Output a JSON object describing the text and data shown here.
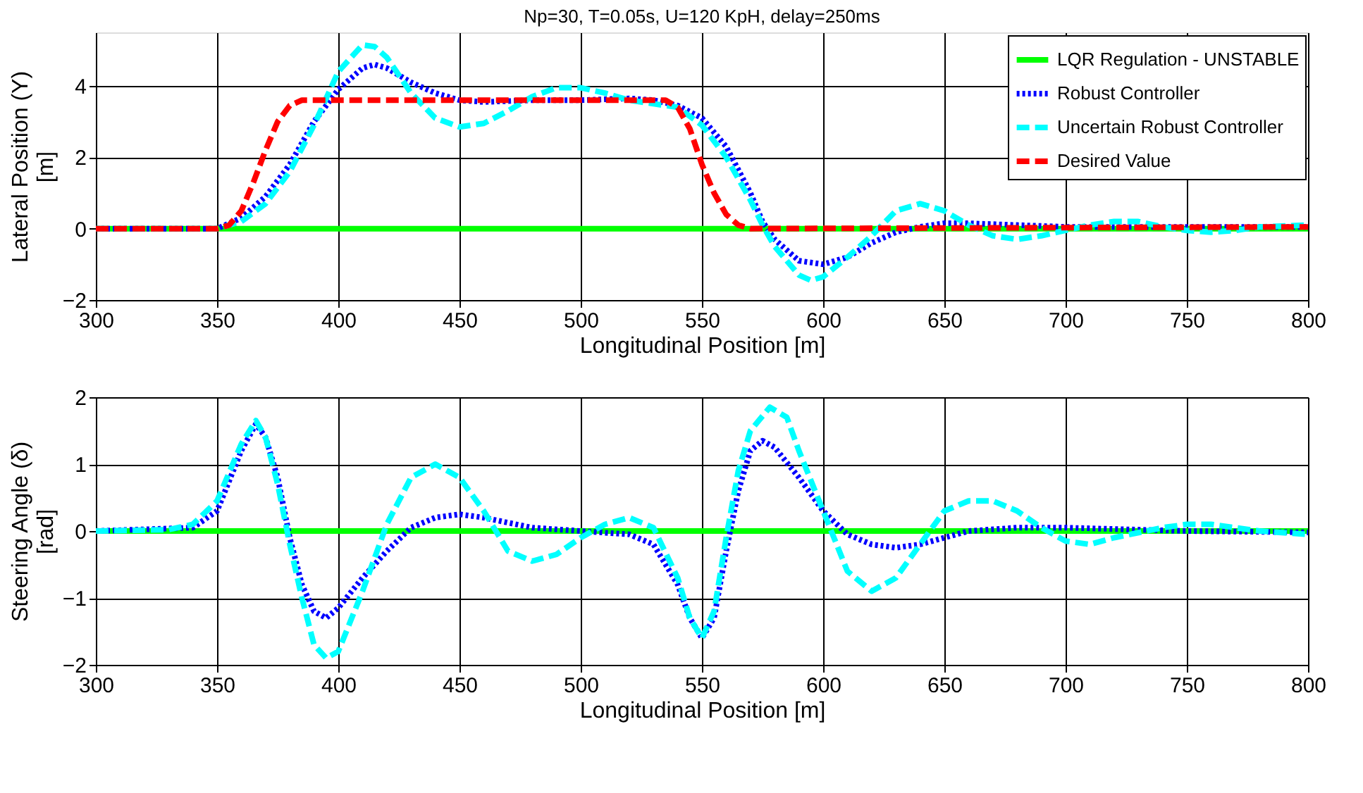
{
  "chart_data": [
    {
      "type": "line",
      "title": "Np=30, T=0.05s, U=120 KpH, delay=250ms",
      "xlabel": "Longitudinal Position [m]",
      "ylabel": "Lateral Position (Y)\n[m]",
      "xlim": [
        300,
        800
      ],
      "xticks": [
        300,
        350,
        400,
        450,
        500,
        550,
        600,
        650,
        700,
        750,
        800
      ],
      "ylim": [
        -2,
        5.5
      ],
      "yticks": [
        -2,
        0,
        2,
        4
      ],
      "grid": true,
      "legend": "top right",
      "marker": "none",
      "series": [
        {
          "name": "LQR Regulation - UNSTABLE",
          "color": "#00ff00",
          "line_style": "solid",
          "x": [
            300,
            800
          ],
          "values": [
            0,
            0
          ]
        },
        {
          "name": "Robust Controller",
          "color": "#0000ff",
          "line_style": "dotted",
          "x": [
            300,
            350,
            360,
            370,
            380,
            390,
            400,
            410,
            415,
            420,
            430,
            440,
            450,
            460,
            480,
            500,
            520,
            530,
            540,
            550,
            560,
            570,
            575,
            580,
            590,
            600,
            610,
            620,
            630,
            640,
            650,
            660,
            680,
            700,
            750,
            800
          ],
          "values": [
            0,
            0,
            0.3,
            0.9,
            1.8,
            3.0,
            3.9,
            4.5,
            4.6,
            4.5,
            4.1,
            3.8,
            3.6,
            3.55,
            3.6,
            3.6,
            3.65,
            3.6,
            3.45,
            3.1,
            2.3,
            1.0,
            0.2,
            -0.3,
            -0.9,
            -1.0,
            -0.8,
            -0.4,
            -0.1,
            0.05,
            0.15,
            0.15,
            0.1,
            0.05,
            0.05,
            0.05
          ]
        },
        {
          "name": "Uncertain Robust Controller",
          "color": "#00ffff",
          "line_style": "dashed",
          "x": [
            300,
            350,
            360,
            370,
            380,
            390,
            400,
            410,
            415,
            420,
            430,
            440,
            450,
            460,
            470,
            480,
            490,
            500,
            510,
            520,
            530,
            540,
            550,
            560,
            570,
            575,
            580,
            590,
            595,
            600,
            610,
            620,
            630,
            640,
            650,
            660,
            670,
            680,
            690,
            700,
            710,
            720,
            730,
            740,
            750,
            760,
            770,
            780,
            800
          ],
          "values": [
            0,
            0,
            0.2,
            0.7,
            1.6,
            2.9,
            4.4,
            5.15,
            5.1,
            4.8,
            3.8,
            3.1,
            2.85,
            2.95,
            3.3,
            3.7,
            3.95,
            3.95,
            3.8,
            3.6,
            3.5,
            3.4,
            2.9,
            2.0,
            0.8,
            0.1,
            -0.5,
            -1.3,
            -1.45,
            -1.35,
            -0.8,
            -0.2,
            0.5,
            0.7,
            0.5,
            0.1,
            -0.2,
            -0.3,
            -0.2,
            -0.05,
            0.1,
            0.2,
            0.2,
            0.05,
            -0.05,
            -0.1,
            -0.05,
            0.05,
            0.1
          ]
        },
        {
          "name": "Desired Value",
          "color": "#ff0000",
          "line_style": "dashed",
          "x": [
            300,
            350,
            355,
            360,
            365,
            370,
            375,
            380,
            385,
            535,
            540,
            545,
            550,
            555,
            560,
            565,
            570,
            800
          ],
          "values": [
            0,
            0,
            0.1,
            0.5,
            1.3,
            2.2,
            3.0,
            3.45,
            3.6,
            3.6,
            3.4,
            2.8,
            1.8,
            1.0,
            0.4,
            0.1,
            0,
            0.05
          ]
        }
      ]
    },
    {
      "type": "line",
      "xlabel": "Longitudinal Position [m]",
      "ylabel": "Steering Angle (δ)\n[rad]",
      "xlim": [
        300,
        800
      ],
      "xticks": [
        300,
        350,
        400,
        450,
        500,
        550,
        600,
        650,
        700,
        750,
        800
      ],
      "ylim": [
        -2,
        2
      ],
      "yticks": [
        -2,
        -1,
        0,
        1,
        2
      ],
      "grid": true,
      "legend": "top right",
      "marker": "none",
      "series": [
        {
          "name": "LQR Regulation - UNSTABLE",
          "color": "#00ff00",
          "line_style": "solid",
          "x": [
            300,
            800
          ],
          "values": [
            0,
            0
          ]
        },
        {
          "name": "Robust Controller",
          "color": "#0000ff",
          "line_style": "dotted",
          "x": [
            300,
            340,
            350,
            360,
            366,
            370,
            375,
            380,
            385,
            390,
            395,
            400,
            410,
            420,
            430,
            440,
            450,
            460,
            480,
            500,
            520,
            530,
            540,
            545,
            550,
            555,
            560,
            565,
            570,
            575,
            580,
            590,
            600,
            610,
            620,
            630,
            640,
            650,
            660,
            680,
            700,
            750,
            800
          ],
          "values": [
            0,
            0.05,
            0.3,
            1.2,
            1.6,
            1.4,
            0.8,
            -0.1,
            -0.8,
            -1.2,
            -1.3,
            -1.15,
            -0.7,
            -0.3,
            0.05,
            0.2,
            0.25,
            0.2,
            0.05,
            0,
            -0.05,
            -0.2,
            -0.8,
            -1.3,
            -1.6,
            -1.3,
            -0.3,
            0.6,
            1.2,
            1.35,
            1.25,
            0.8,
            0.3,
            -0.05,
            -0.2,
            -0.25,
            -0.2,
            -0.1,
            0,
            0.05,
            0.05,
            0,
            -0.02
          ]
        },
        {
          "name": "Uncertain Robust Controller",
          "color": "#00ffff",
          "line_style": "dashed",
          "x": [
            300,
            330,
            340,
            350,
            360,
            366,
            370,
            375,
            380,
            385,
            390,
            395,
            400,
            410,
            420,
            430,
            440,
            450,
            460,
            470,
            480,
            490,
            500,
            510,
            520,
            530,
            540,
            545,
            550,
            555,
            560,
            565,
            570,
            578,
            585,
            590,
            600,
            610,
            620,
            630,
            640,
            650,
            660,
            670,
            680,
            690,
            700,
            710,
            720,
            740,
            750,
            760,
            780,
            800
          ],
          "values": [
            0,
            0.02,
            0.1,
            0.45,
            1.3,
            1.65,
            1.4,
            0.7,
            -0.2,
            -1.0,
            -1.7,
            -1.9,
            -1.8,
            -0.9,
            0.1,
            0.8,
            1.0,
            0.8,
            0.3,
            -0.3,
            -0.45,
            -0.35,
            -0.1,
            0.1,
            0.2,
            0.05,
            -0.7,
            -1.3,
            -1.6,
            -1.2,
            -0.1,
            0.9,
            1.5,
            1.85,
            1.7,
            1.2,
            0.3,
            -0.6,
            -0.9,
            -0.7,
            -0.2,
            0.3,
            0.45,
            0.45,
            0.3,
            0.05,
            -0.15,
            -0.2,
            -0.1,
            0.05,
            0.1,
            0.1,
            0,
            -0.05
          ]
        }
      ]
    }
  ]
}
